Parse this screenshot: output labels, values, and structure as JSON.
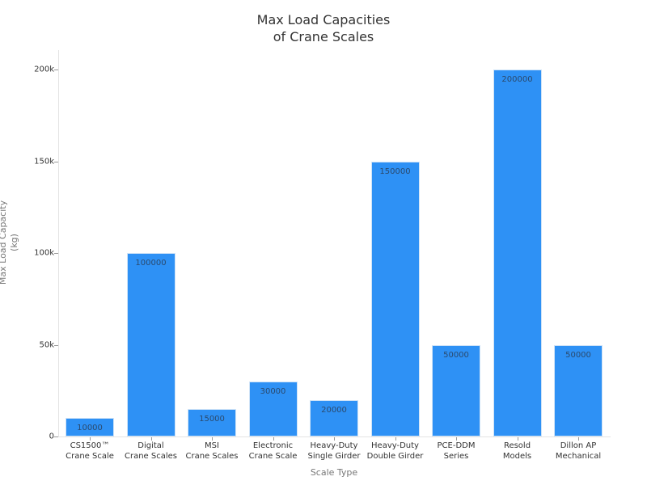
{
  "chart_data": {
    "type": "bar",
    "title": "Max Load Capacities of Crane Scales",
    "title_lines": [
      "Max Load Capacities",
      "of Crane Scales"
    ],
    "xlabel": "Scale Type",
    "ylabel": "Max Load Capacity (kg)",
    "ylabel_lines": [
      "Max Load Capacity",
      "(kg)"
    ],
    "ylim": [
      0,
      210000
    ],
    "yticks": [
      0,
      50000,
      100000,
      150000,
      200000
    ],
    "ytick_labels": [
      "0",
      "50k",
      "100k",
      "150k",
      "200k"
    ],
    "grid": false,
    "legend": null,
    "bar_color": "#2e91f5",
    "categories": [
      "CS1500™ Crane Scale",
      "Digital Crane Scales",
      "MSI Crane Scales",
      "Electronic Crane Scale",
      "Heavy-Duty Single Girder",
      "Heavy-Duty Double Girder",
      "PCE-DDM Series",
      "Resold Models",
      "Dillon AP Mechanical"
    ],
    "category_lines": [
      [
        "CS1500™",
        "Crane Scale"
      ],
      [
        "Digital",
        "Crane Scales"
      ],
      [
        "MSI",
        "Crane Scales"
      ],
      [
        "Electronic",
        "Crane Scale"
      ],
      [
        "Heavy-Duty",
        "Single Girder"
      ],
      [
        "Heavy-Duty",
        "Double Girder"
      ],
      [
        "PCE-DDM",
        "Series"
      ],
      [
        "Resold",
        "Models"
      ],
      [
        "Dillon AP",
        "Mechanical"
      ]
    ],
    "values": [
      10000,
      100000,
      15000,
      30000,
      20000,
      150000,
      50000,
      200000,
      50000
    ],
    "value_labels": [
      "10000",
      "100000",
      "15000",
      "30000",
      "20000",
      "150000",
      "50000",
      "200000",
      "50000"
    ]
  }
}
